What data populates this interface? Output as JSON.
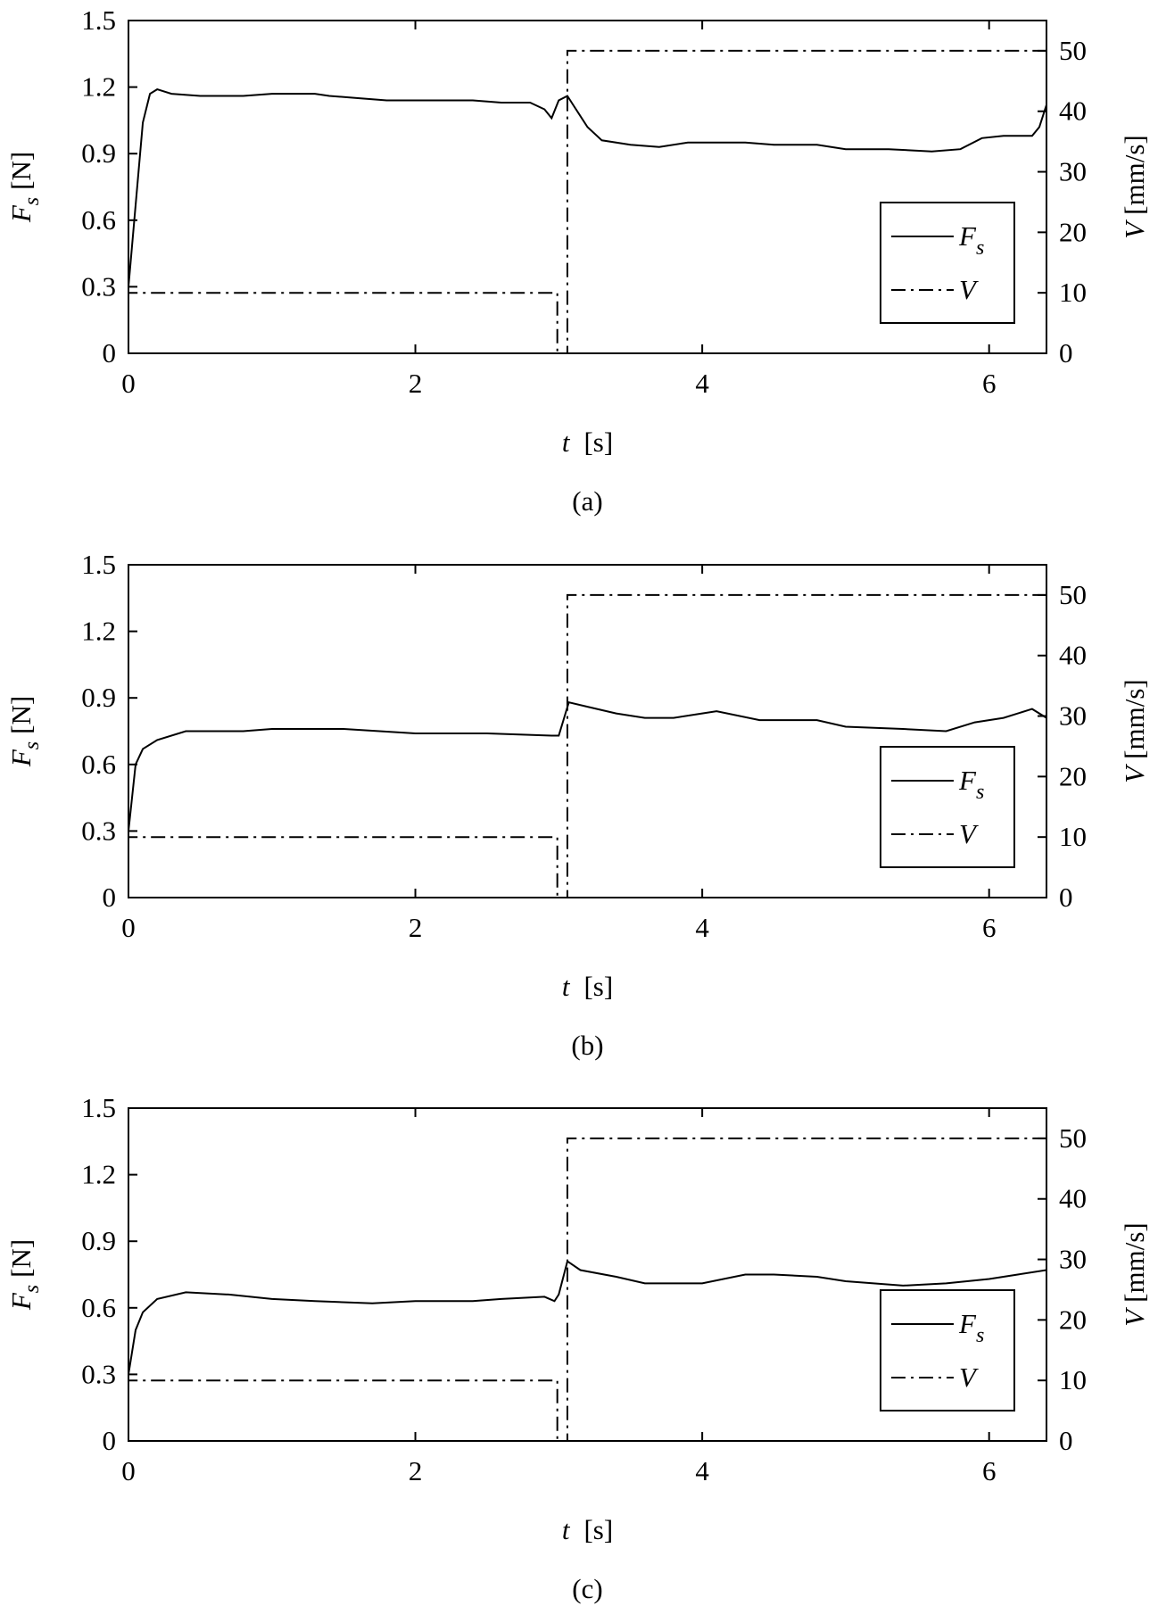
{
  "chart_data": [
    {
      "type": "line",
      "caption": "(a)",
      "xlabel": "t",
      "xlabel_unit": "[s]",
      "ylabel": "F",
      "ylabel_sub": "s",
      "ylabel_unit": "[N]",
      "y2label": "V",
      "y2label_unit": "[mm/s]",
      "xlim": [
        0,
        6.4
      ],
      "xticks": [
        0,
        2,
        4,
        6
      ],
      "ylim": [
        0,
        1.5
      ],
      "yticks": [
        0,
        0.3,
        0.6,
        0.9,
        1.2,
        1.5
      ],
      "y2lim": [
        0,
        55
      ],
      "y2ticks": [
        0,
        10,
        20,
        30,
        40,
        50
      ],
      "legend": "center right",
      "series": [
        {
          "name": "F",
          "name_sub": "s",
          "color": "#000000",
          "linestyle": "solid",
          "x": [
            0,
            0.1,
            0.15,
            0.2,
            0.3,
            0.5,
            0.8,
            1.0,
            1.3,
            1.4,
            1.6,
            1.8,
            2.2,
            2.4,
            2.6,
            2.8,
            2.9,
            2.95,
            3.0,
            3.06,
            3.1,
            3.2,
            3.3,
            3.5,
            3.7,
            3.9,
            4.1,
            4.3,
            4.5,
            4.8,
            5.0,
            5.3,
            5.6,
            5.8,
            5.95,
            6.1,
            6.3,
            6.35,
            6.4
          ],
          "values": [
            0.3,
            1.04,
            1.17,
            1.19,
            1.17,
            1.16,
            1.16,
            1.17,
            1.17,
            1.16,
            1.15,
            1.14,
            1.14,
            1.14,
            1.13,
            1.13,
            1.1,
            1.06,
            1.14,
            1.16,
            1.12,
            1.02,
            0.96,
            0.94,
            0.93,
            0.95,
            0.95,
            0.95,
            0.94,
            0.94,
            0.92,
            0.92,
            0.91,
            0.92,
            0.97,
            0.98,
            0.98,
            1.02,
            1.12
          ]
        },
        {
          "name": "V",
          "axis": "y2",
          "color": "#000000",
          "linestyle": "dashdot",
          "x": [
            0,
            0,
            2.99,
            2.99,
            3.06,
            3.06,
            6.4
          ],
          "values": [
            0,
            10,
            10,
            0,
            0,
            50,
            50
          ]
        }
      ]
    },
    {
      "type": "line",
      "caption": "(b)",
      "xlabel": "t",
      "xlabel_unit": "[s]",
      "ylabel": "F",
      "ylabel_sub": "s",
      "ylabel_unit": "[N]",
      "y2label": "V",
      "y2label_unit": "[mm/s]",
      "xlim": [
        0,
        6.4
      ],
      "xticks": [
        0,
        2,
        4,
        6
      ],
      "ylim": [
        0,
        1.5
      ],
      "yticks": [
        0,
        0.3,
        0.6,
        0.9,
        1.2,
        1.5
      ],
      "y2lim": [
        0,
        55
      ],
      "y2ticks": [
        0,
        10,
        20,
        30,
        40,
        50
      ],
      "legend": "center right",
      "series": [
        {
          "name": "F",
          "name_sub": "s",
          "color": "#000000",
          "linestyle": "solid",
          "x": [
            0,
            0.05,
            0.1,
            0.2,
            0.4,
            0.8,
            1.0,
            1.5,
            2.0,
            2.5,
            2.95,
            3.0,
            3.07,
            3.2,
            3.4,
            3.6,
            3.8,
            4.0,
            4.1,
            4.4,
            4.8,
            5.0,
            5.4,
            5.7,
            5.9,
            6.1,
            6.3,
            6.4
          ],
          "values": [
            0.3,
            0.6,
            0.67,
            0.71,
            0.75,
            0.75,
            0.76,
            0.76,
            0.74,
            0.74,
            0.73,
            0.73,
            0.88,
            0.86,
            0.83,
            0.81,
            0.81,
            0.83,
            0.84,
            0.8,
            0.8,
            0.77,
            0.76,
            0.75,
            0.79,
            0.81,
            0.85,
            0.81
          ]
        },
        {
          "name": "V",
          "axis": "y2",
          "color": "#000000",
          "linestyle": "dashdot",
          "x": [
            0,
            0,
            2.99,
            2.99,
            3.06,
            3.06,
            6.4
          ],
          "values": [
            0,
            10,
            10,
            0,
            0,
            50,
            50
          ]
        }
      ]
    },
    {
      "type": "line",
      "caption": "(c)",
      "xlabel": "t",
      "xlabel_unit": "[s]",
      "ylabel": "F",
      "ylabel_sub": "s",
      "ylabel_unit": "[N]",
      "y2label": "V",
      "y2label_unit": "[mm/s]",
      "xlim": [
        0,
        6.4
      ],
      "xticks": [
        0,
        2,
        4,
        6
      ],
      "ylim": [
        0,
        1.5
      ],
      "yticks": [
        0,
        0.3,
        0.6,
        0.9,
        1.2,
        1.5
      ],
      "y2lim": [
        0,
        55
      ],
      "y2ticks": [
        0,
        10,
        20,
        30,
        40,
        50
      ],
      "legend": "center right",
      "series": [
        {
          "name": "F",
          "name_sub": "s",
          "color": "#000000",
          "linestyle": "solid",
          "x": [
            0,
            0.05,
            0.1,
            0.2,
            0.4,
            0.7,
            1.0,
            1.3,
            1.7,
            2.0,
            2.4,
            2.6,
            2.9,
            2.97,
            3.0,
            3.06,
            3.15,
            3.4,
            3.6,
            4.0,
            4.3,
            4.5,
            4.8,
            5.0,
            5.4,
            5.7,
            6.0,
            6.2,
            6.4
          ],
          "values": [
            0.3,
            0.5,
            0.58,
            0.64,
            0.67,
            0.66,
            0.64,
            0.63,
            0.62,
            0.63,
            0.63,
            0.64,
            0.65,
            0.63,
            0.66,
            0.81,
            0.77,
            0.74,
            0.71,
            0.71,
            0.75,
            0.75,
            0.74,
            0.72,
            0.7,
            0.71,
            0.73,
            0.75,
            0.77
          ]
        },
        {
          "name": "V",
          "axis": "y2",
          "color": "#000000",
          "linestyle": "dashdot",
          "x": [
            0,
            0,
            2.99,
            2.99,
            3.06,
            3.06,
            6.4
          ],
          "values": [
            0,
            10,
            10,
            0,
            0,
            50,
            50
          ]
        }
      ]
    }
  ]
}
